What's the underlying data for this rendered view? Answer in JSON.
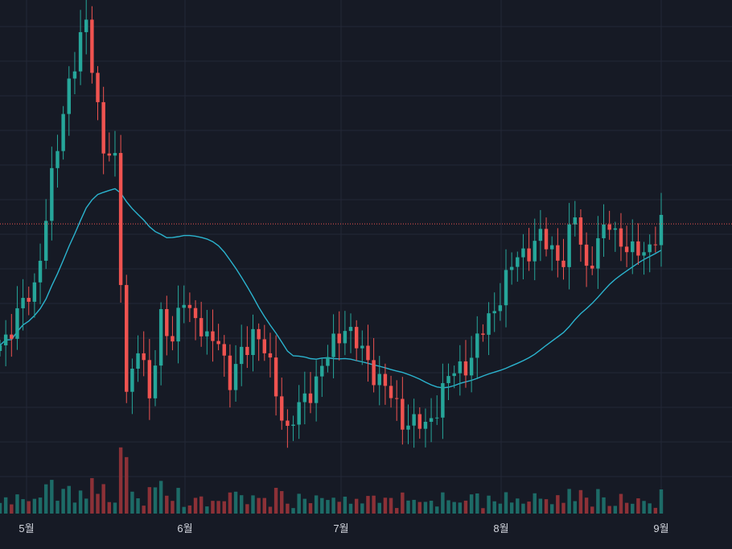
{
  "chart_data": {
    "type": "candlestick",
    "x_labels": [
      "5월",
      "6월",
      "7월",
      "8월",
      "9월"
    ],
    "ylim": [
      0,
      100
    ],
    "colors": {
      "background": "#161a25",
      "grid": "#232837",
      "up": "#26a69a",
      "down": "#ef5350",
      "volume_up": "#1d6b67",
      "volume_down": "#8c3137",
      "moving_average": "#2bb4cf",
      "price_line": "#ef5350",
      "axis_text": "#d1d4dc"
    },
    "last_price_line": 59.8,
    "key_closes": [
      {
        "month": "5월",
        "close": 48.6
      },
      {
        "month": "5월 peak",
        "close": 95.4
      },
      {
        "month": "6월",
        "close": 38.0
      },
      {
        "month": "7월",
        "close": 22.6
      },
      {
        "month": "8월",
        "close": 42.5
      },
      {
        "month": "9월",
        "close": 59.6
      }
    ]
  }
}
